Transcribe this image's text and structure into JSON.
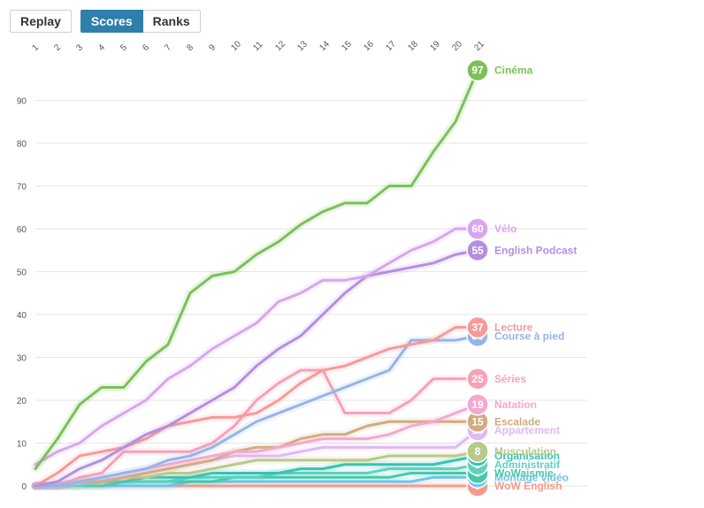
{
  "toolbar": {
    "replay_label": "Replay",
    "scores_label": "Scores",
    "ranks_label": "Ranks"
  },
  "chart_data": {
    "type": "line",
    "title": "",
    "xlabel": "",
    "ylabel": "",
    "x": [
      1,
      2,
      3,
      4,
      5,
      6,
      7,
      8,
      9,
      10,
      11,
      12,
      13,
      14,
      15,
      16,
      17,
      18,
      19,
      20,
      21
    ],
    "ylim": [
      0,
      100
    ],
    "yticks": [
      0,
      10,
      20,
      30,
      40,
      50,
      60,
      70,
      80,
      90
    ],
    "grid": true,
    "series": [
      {
        "name": "Cinéma",
        "color": "#7cc05a",
        "final": 97,
        "values": [
          4,
          11,
          19,
          23,
          23,
          29,
          33,
          45,
          49,
          50,
          54,
          57,
          61,
          64,
          66,
          66,
          70,
          70,
          78,
          85,
          97
        ]
      },
      {
        "name": "Vélo",
        "color": "#d8a6ee",
        "final": 60,
        "values": [
          5,
          8,
          10,
          14,
          17,
          20,
          25,
          28,
          32,
          35,
          38,
          43,
          45,
          48,
          48,
          49,
          52,
          55,
          57,
          60,
          60
        ]
      },
      {
        "name": "English Podcast",
        "color": "#b48fe0",
        "final": 55,
        "values": [
          0,
          1,
          4,
          6,
          9,
          12,
          14,
          17,
          20,
          23,
          28,
          32,
          35,
          40,
          45,
          49,
          50,
          51,
          52,
          54,
          55
        ]
      },
      {
        "name": "Lecture",
        "color": "#f79a98",
        "final": 37,
        "values": [
          0,
          3,
          7,
          8,
          9,
          11,
          14,
          15,
          16,
          16,
          17,
          20,
          24,
          27,
          28,
          30,
          32,
          33,
          34,
          37,
          37
        ]
      },
      {
        "name": "Course à pied",
        "color": "#95b4ea",
        "final": 35,
        "values": [
          0,
          0,
          1,
          2,
          3,
          4,
          6,
          7,
          9,
          12,
          15,
          17,
          19,
          21,
          23,
          25,
          27,
          34,
          34,
          34,
          35
        ]
      },
      {
        "name": "Séries",
        "color": "#f7a1b7",
        "final": 25,
        "values": [
          0,
          0,
          2,
          3,
          8,
          8,
          8,
          8,
          10,
          14,
          20,
          24,
          27,
          27,
          17,
          17,
          17,
          20,
          25,
          25,
          25
        ]
      },
      {
        "name": "Natation",
        "color": "#f3a9cd",
        "final": 19,
        "values": [
          0,
          0,
          1,
          2,
          3,
          4,
          5,
          6,
          7,
          8,
          8,
          9,
          10,
          11,
          11,
          11,
          12,
          14,
          15,
          17,
          19
        ]
      },
      {
        "name": "Escalade",
        "color": "#d1ac7e",
        "final": 15,
        "values": [
          0,
          0,
          1,
          1,
          2,
          3,
          4,
          5,
          6,
          8,
          9,
          9,
          11,
          12,
          12,
          14,
          15,
          15,
          15,
          15,
          15
        ]
      },
      {
        "name": "Appartement",
        "color": "#e1b8f2",
        "final": 13,
        "values": [
          0,
          0,
          1,
          1,
          2,
          3,
          4,
          5,
          6,
          7,
          7,
          7,
          8,
          9,
          9,
          9,
          9,
          9,
          9,
          9,
          13
        ]
      },
      {
        "name": "Musculation",
        "color": "#b8c98a",
        "final": 8,
        "values": [
          0,
          0,
          1,
          1,
          2,
          2,
          3,
          3,
          4,
          5,
          6,
          6,
          6,
          6,
          6,
          6,
          7,
          7,
          7,
          7,
          8
        ]
      },
      {
        "name": "Organisation",
        "color": "#36c3b3",
        "final": 7,
        "values": [
          0,
          0,
          1,
          1,
          1,
          2,
          2,
          2,
          3,
          3,
          3,
          3,
          4,
          4,
          5,
          5,
          5,
          5,
          5,
          6,
          7
        ]
      },
      {
        "name": "Administratif",
        "color": "#5fd1c1",
        "final": 5,
        "values": [
          0,
          0,
          0,
          1,
          1,
          1,
          1,
          2,
          2,
          2,
          2,
          3,
          3,
          3,
          3,
          3,
          4,
          4,
          4,
          4,
          5
        ]
      },
      {
        "name": "WoWaismie",
        "color": "#48c8a8",
        "final": 3,
        "values": [
          0,
          0,
          0,
          0,
          1,
          1,
          1,
          1,
          1,
          2,
          2,
          2,
          2,
          2,
          2,
          2,
          2,
          3,
          3,
          3,
          3
        ]
      },
      {
        "name": "Montage vidéo",
        "color": "#73c2e8",
        "final": 2,
        "values": [
          0,
          0,
          0,
          0,
          0,
          0,
          0,
          1,
          1,
          1,
          1,
          1,
          1,
          1,
          1,
          1,
          1,
          1,
          2,
          2,
          2
        ]
      },
      {
        "name": "WoW English",
        "color": "#f59a8c",
        "final": 0,
        "values": [
          0,
          0,
          0,
          0,
          0,
          0,
          0,
          0,
          0,
          0,
          0,
          0,
          0,
          0,
          0,
          0,
          0,
          0,
          0,
          0,
          0
        ]
      }
    ]
  }
}
